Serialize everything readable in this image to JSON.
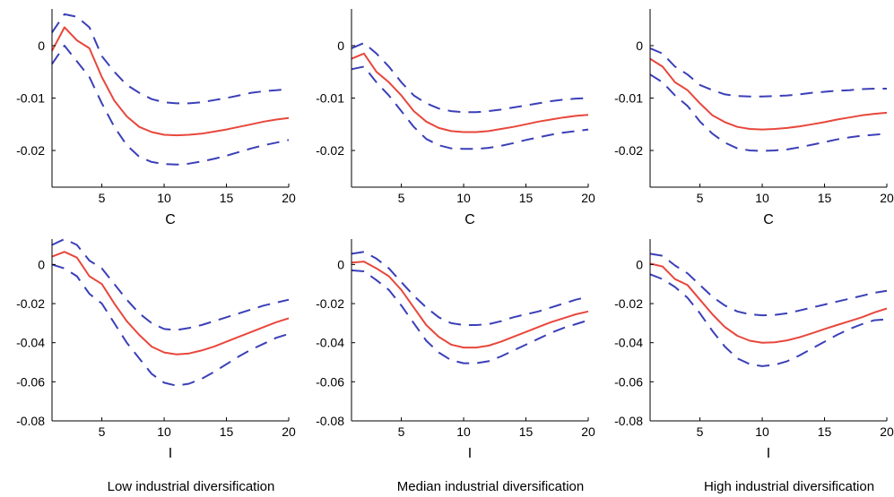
{
  "colors": {
    "median": "#e8473c",
    "bands": "#3a3fb8",
    "axis": "#000000"
  },
  "captions": [
    "Low industrial diversification",
    "Median industrial diversification",
    "High industrial diversification"
  ],
  "chart_data": [
    {
      "type": "line",
      "row": 1,
      "col": 1,
      "xlabel": "C",
      "xlim": [
        1,
        20
      ],
      "ylim": [
        -0.027,
        0.007
      ],
      "xticks": [
        5,
        10,
        15,
        20
      ],
      "yticks": [
        0,
        -0.01,
        -0.02
      ],
      "ytick_labels": [
        "0",
        "-0.01",
        "-0.02"
      ],
      "x": [
        1,
        2,
        3,
        4,
        5,
        6,
        7,
        8,
        9,
        10,
        11,
        12,
        13,
        14,
        15,
        16,
        17,
        18,
        19,
        20
      ],
      "series": [
        {
          "role": "upper",
          "values": [
            0.0025,
            0.006,
            0.0055,
            0.0035,
            -0.002,
            -0.005,
            -0.0075,
            -0.009,
            -0.0102,
            -0.0108,
            -0.011,
            -0.011,
            -0.0108,
            -0.0104,
            -0.01,
            -0.0095,
            -0.009,
            -0.0087,
            -0.0085,
            -0.0083
          ]
        },
        {
          "role": "median",
          "values": [
            -0.001,
            0.0035,
            0.001,
            -0.0005,
            -0.006,
            -0.0105,
            -0.0135,
            -0.0155,
            -0.0165,
            -0.017,
            -0.0171,
            -0.017,
            -0.0168,
            -0.0164,
            -0.016,
            -0.0155,
            -0.015,
            -0.0145,
            -0.0141,
            -0.0138
          ]
        },
        {
          "role": "lower",
          "values": [
            -0.0035,
            0.0,
            -0.003,
            -0.006,
            -0.011,
            -0.0155,
            -0.019,
            -0.0212,
            -0.0222,
            -0.0226,
            -0.0227,
            -0.0225,
            -0.0221,
            -0.0216,
            -0.021,
            -0.0203,
            -0.0196,
            -0.019,
            -0.0185,
            -0.018
          ]
        }
      ]
    },
    {
      "type": "line",
      "row": 1,
      "col": 2,
      "xlabel": "C",
      "xlim": [
        1,
        20
      ],
      "ylim": [
        -0.027,
        0.007
      ],
      "xticks": [
        5,
        10,
        15,
        20
      ],
      "yticks": [
        0,
        -0.01,
        -0.02
      ],
      "ytick_labels": [
        "0",
        "-0.01",
        "-0.02"
      ],
      "x": [
        1,
        2,
        3,
        4,
        5,
        6,
        7,
        8,
        9,
        10,
        11,
        12,
        13,
        14,
        15,
        16,
        17,
        18,
        19,
        20
      ],
      "series": [
        {
          "role": "upper",
          "values": [
            -0.0005,
            0.0005,
            -0.0015,
            -0.004,
            -0.007,
            -0.0095,
            -0.011,
            -0.012,
            -0.0125,
            -0.0127,
            -0.0127,
            -0.0125,
            -0.0122,
            -0.0118,
            -0.0114,
            -0.011,
            -0.0106,
            -0.0103,
            -0.0101,
            -0.01
          ]
        },
        {
          "role": "median",
          "values": [
            -0.0025,
            -0.0015,
            -0.005,
            -0.007,
            -0.0095,
            -0.0125,
            -0.0145,
            -0.0157,
            -0.0163,
            -0.0165,
            -0.0165,
            -0.0163,
            -0.0159,
            -0.0155,
            -0.015,
            -0.0145,
            -0.0141,
            -0.0137,
            -0.0134,
            -0.0132
          ]
        },
        {
          "role": "lower",
          "values": [
            -0.0045,
            -0.004,
            -0.007,
            -0.0095,
            -0.0125,
            -0.0155,
            -0.0178,
            -0.019,
            -0.0196,
            -0.0197,
            -0.0197,
            -0.0195,
            -0.0191,
            -0.0186,
            -0.018,
            -0.0175,
            -0.017,
            -0.0166,
            -0.0163,
            -0.016
          ]
        }
      ]
    },
    {
      "type": "line",
      "row": 1,
      "col": 3,
      "xlabel": "C",
      "xlim": [
        1,
        20
      ],
      "ylim": [
        -0.027,
        0.007
      ],
      "xticks": [
        5,
        10,
        15,
        20
      ],
      "yticks": [
        0,
        -0.01,
        -0.02
      ],
      "ytick_labels": [
        "0",
        "-0.01",
        "-0.02"
      ],
      "x": [
        1,
        2,
        3,
        4,
        5,
        6,
        7,
        8,
        9,
        10,
        11,
        12,
        13,
        14,
        15,
        16,
        17,
        18,
        19,
        20
      ],
      "series": [
        {
          "role": "upper",
          "values": [
            -0.0005,
            -0.0015,
            -0.004,
            -0.0055,
            -0.0075,
            -0.0085,
            -0.0093,
            -0.0096,
            -0.0097,
            -0.0097,
            -0.0096,
            -0.0095,
            -0.0093,
            -0.009,
            -0.0088,
            -0.0086,
            -0.0085,
            -0.0083,
            -0.0082,
            -0.0082
          ]
        },
        {
          "role": "median",
          "values": [
            -0.0025,
            -0.004,
            -0.007,
            -0.0085,
            -0.011,
            -0.0133,
            -0.0146,
            -0.0155,
            -0.0159,
            -0.016,
            -0.0159,
            -0.0157,
            -0.0154,
            -0.015,
            -0.0146,
            -0.0141,
            -0.0137,
            -0.0133,
            -0.013,
            -0.0128
          ]
        },
        {
          "role": "lower",
          "values": [
            -0.0055,
            -0.007,
            -0.0095,
            -0.0115,
            -0.0145,
            -0.0168,
            -0.0185,
            -0.0196,
            -0.02,
            -0.0201,
            -0.02,
            -0.0198,
            -0.0194,
            -0.0189,
            -0.0184,
            -0.0179,
            -0.0175,
            -0.0172,
            -0.017,
            -0.0168
          ]
        }
      ]
    },
    {
      "type": "line",
      "row": 2,
      "col": 1,
      "xlabel": "I",
      "xlim": [
        1,
        20
      ],
      "ylim": [
        -0.08,
        0.013
      ],
      "xticks": [
        5,
        10,
        15,
        20
      ],
      "yticks": [
        0,
        -0.02,
        -0.04,
        -0.06,
        -0.08
      ],
      "ytick_labels": [
        "0",
        "-0.02",
        "-0.04",
        "-0.06",
        "-0.08"
      ],
      "x": [
        1,
        2,
        3,
        4,
        5,
        6,
        7,
        8,
        9,
        10,
        11,
        12,
        13,
        14,
        15,
        16,
        17,
        18,
        19,
        20
      ],
      "series": [
        {
          "role": "upper",
          "values": [
            0.01,
            0.013,
            0.01,
            0.002,
            -0.002,
            -0.01,
            -0.018,
            -0.025,
            -0.03,
            -0.033,
            -0.0335,
            -0.0325,
            -0.031,
            -0.029,
            -0.027,
            -0.025,
            -0.023,
            -0.021,
            -0.0195,
            -0.018
          ]
        },
        {
          "role": "median",
          "values": [
            0.004,
            0.0065,
            0.0035,
            -0.006,
            -0.01,
            -0.02,
            -0.029,
            -0.036,
            -0.042,
            -0.045,
            -0.046,
            -0.0455,
            -0.044,
            -0.042,
            -0.0395,
            -0.037,
            -0.0345,
            -0.032,
            -0.0295,
            -0.0275
          ]
        },
        {
          "role": "lower",
          "values": [
            0.0,
            -0.002,
            -0.006,
            -0.015,
            -0.02,
            -0.03,
            -0.04,
            -0.048,
            -0.056,
            -0.0605,
            -0.062,
            -0.061,
            -0.0585,
            -0.055,
            -0.051,
            -0.047,
            -0.0435,
            -0.0405,
            -0.0375,
            -0.0355
          ]
        }
      ]
    },
    {
      "type": "line",
      "row": 2,
      "col": 2,
      "xlabel": "I",
      "xlim": [
        1,
        20
      ],
      "ylim": [
        -0.08,
        0.013
      ],
      "xticks": [
        5,
        10,
        15,
        20
      ],
      "yticks": [
        0,
        -0.02,
        -0.04,
        -0.06,
        -0.08
      ],
      "ytick_labels": [
        "0",
        "-0.02",
        "-0.04",
        "-0.06",
        "-0.08"
      ],
      "x": [
        1,
        2,
        3,
        4,
        5,
        6,
        7,
        8,
        9,
        10,
        11,
        12,
        13,
        14,
        15,
        16,
        17,
        18,
        19,
        20
      ],
      "series": [
        {
          "role": "upper",
          "values": [
            0.0055,
            0.0065,
            0.003,
            -0.002,
            -0.009,
            -0.016,
            -0.022,
            -0.027,
            -0.03,
            -0.031,
            -0.031,
            -0.0305,
            -0.029,
            -0.027,
            -0.0255,
            -0.024,
            -0.022,
            -0.02,
            -0.018,
            -0.0165
          ]
        },
        {
          "role": "median",
          "values": [
            0.001,
            0.0015,
            -0.002,
            -0.006,
            -0.013,
            -0.022,
            -0.031,
            -0.037,
            -0.041,
            -0.0425,
            -0.0425,
            -0.0415,
            -0.0395,
            -0.037,
            -0.0345,
            -0.032,
            -0.0295,
            -0.0275,
            -0.0255,
            -0.024
          ]
        },
        {
          "role": "lower",
          "values": [
            -0.003,
            -0.0035,
            -0.008,
            -0.013,
            -0.021,
            -0.03,
            -0.039,
            -0.045,
            -0.049,
            -0.0505,
            -0.0505,
            -0.0495,
            -0.047,
            -0.044,
            -0.041,
            -0.038,
            -0.035,
            -0.0325,
            -0.0305,
            -0.0285
          ]
        }
      ]
    },
    {
      "type": "line",
      "row": 2,
      "col": 3,
      "xlabel": "I",
      "xlim": [
        1,
        20
      ],
      "ylim": [
        -0.08,
        0.013
      ],
      "xticks": [
        5,
        10,
        15,
        20
      ],
      "yticks": [
        0,
        -0.02,
        -0.04,
        -0.06,
        -0.08
      ],
      "ytick_labels": [
        "0",
        "-0.02",
        "-0.04",
        "-0.06",
        "-0.08"
      ],
      "x": [
        1,
        2,
        3,
        4,
        5,
        6,
        7,
        8,
        9,
        10,
        11,
        12,
        13,
        14,
        15,
        16,
        17,
        18,
        19,
        20
      ],
      "series": [
        {
          "role": "upper",
          "values": [
            0.0055,
            0.0045,
            -0.0005,
            -0.0045,
            -0.0105,
            -0.0165,
            -0.021,
            -0.024,
            -0.0255,
            -0.026,
            -0.0258,
            -0.025,
            -0.0235,
            -0.022,
            -0.0205,
            -0.019,
            -0.0175,
            -0.016,
            -0.0145,
            -0.0135
          ]
        },
        {
          "role": "median",
          "values": [
            0.0005,
            -0.001,
            -0.0075,
            -0.0105,
            -0.018,
            -0.0255,
            -0.032,
            -0.0365,
            -0.039,
            -0.04,
            -0.0398,
            -0.0388,
            -0.0372,
            -0.0352,
            -0.033,
            -0.031,
            -0.029,
            -0.027,
            -0.0245,
            -0.0225
          ]
        },
        {
          "role": "lower",
          "values": [
            -0.005,
            -0.0075,
            -0.0115,
            -0.017,
            -0.025,
            -0.034,
            -0.042,
            -0.048,
            -0.051,
            -0.052,
            -0.0513,
            -0.0495,
            -0.0465,
            -0.043,
            -0.0395,
            -0.036,
            -0.033,
            -0.0305,
            -0.0285,
            -0.028
          ]
        }
      ]
    }
  ]
}
